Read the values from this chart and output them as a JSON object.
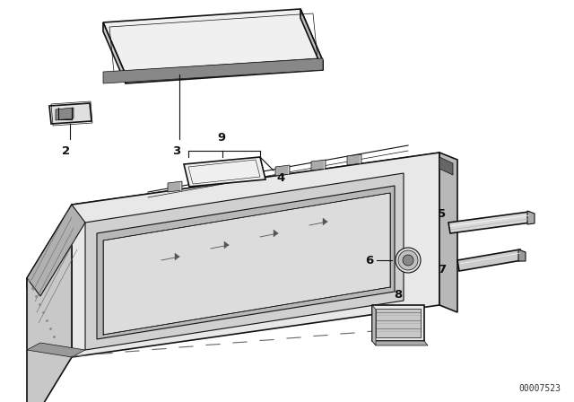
{
  "background_color": "#ffffff",
  "part_number": "00007523",
  "line_color": "#111111",
  "gray_fill": "#e8e8e8",
  "dark_fill": "#c0c0c0",
  "mid_fill": "#d4d4d4"
}
